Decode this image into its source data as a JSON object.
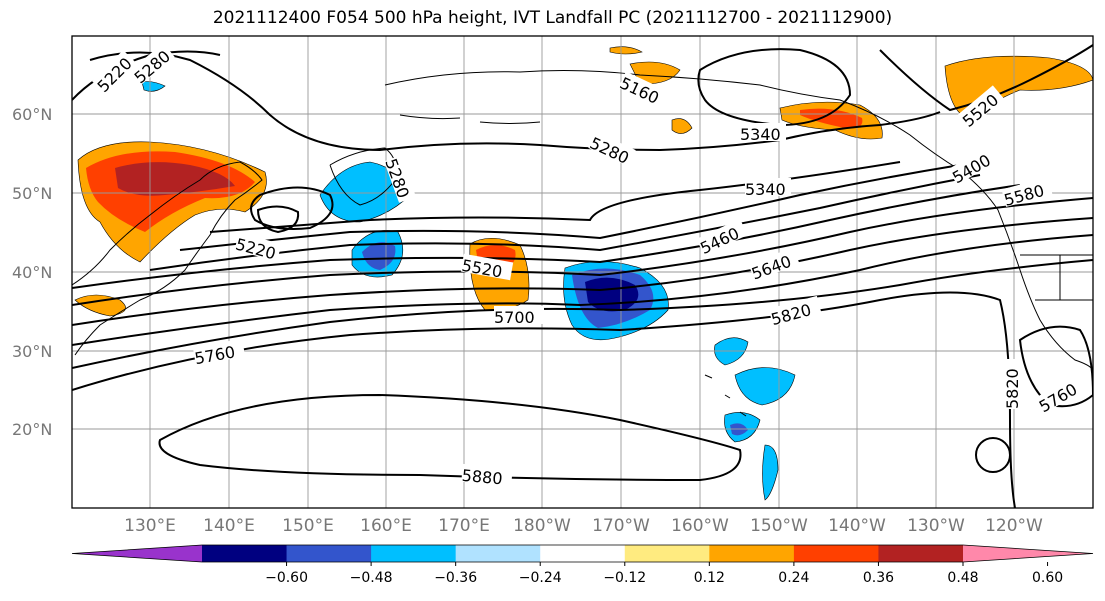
{
  "title": "2021112400 F054 500 hPa height, IVT Landfall PC (2021112700 - 2021112900)",
  "latitude_labels": [
    "60°N",
    "50°N",
    "40°N",
    "30°N",
    "20°N"
  ],
  "longitude_labels": [
    "130°E",
    "140°E",
    "150°E",
    "160°E",
    "170°E",
    "180°W",
    "170°W",
    "160°W",
    "150°W",
    "140°W",
    "130°W",
    "120°W"
  ],
  "contour_labels": [
    "5220",
    "5280",
    "5160",
    "5280",
    "5340",
    "5220",
    "5280",
    "5340",
    "5460",
    "5520",
    "5640",
    "5580",
    "5700",
    "5820",
    "5760",
    "5820",
    "5760",
    "5880",
    "5520",
    "5400"
  ],
  "colorbar": {
    "tick_labels": [
      "−0.60",
      "−0.48",
      "−0.36",
      "−0.24",
      "−0.12",
      "0.12",
      "0.24",
      "0.36",
      "0.48",
      "0.60"
    ],
    "colors": [
      "#9933cc",
      "#000080",
      "#3355cc",
      "#00bfff",
      "#b0e2ff",
      "#ffffff",
      "#ffeb80",
      "#ffa500",
      "#ff4000",
      "#b22222",
      "#ff88aa"
    ]
  }
}
